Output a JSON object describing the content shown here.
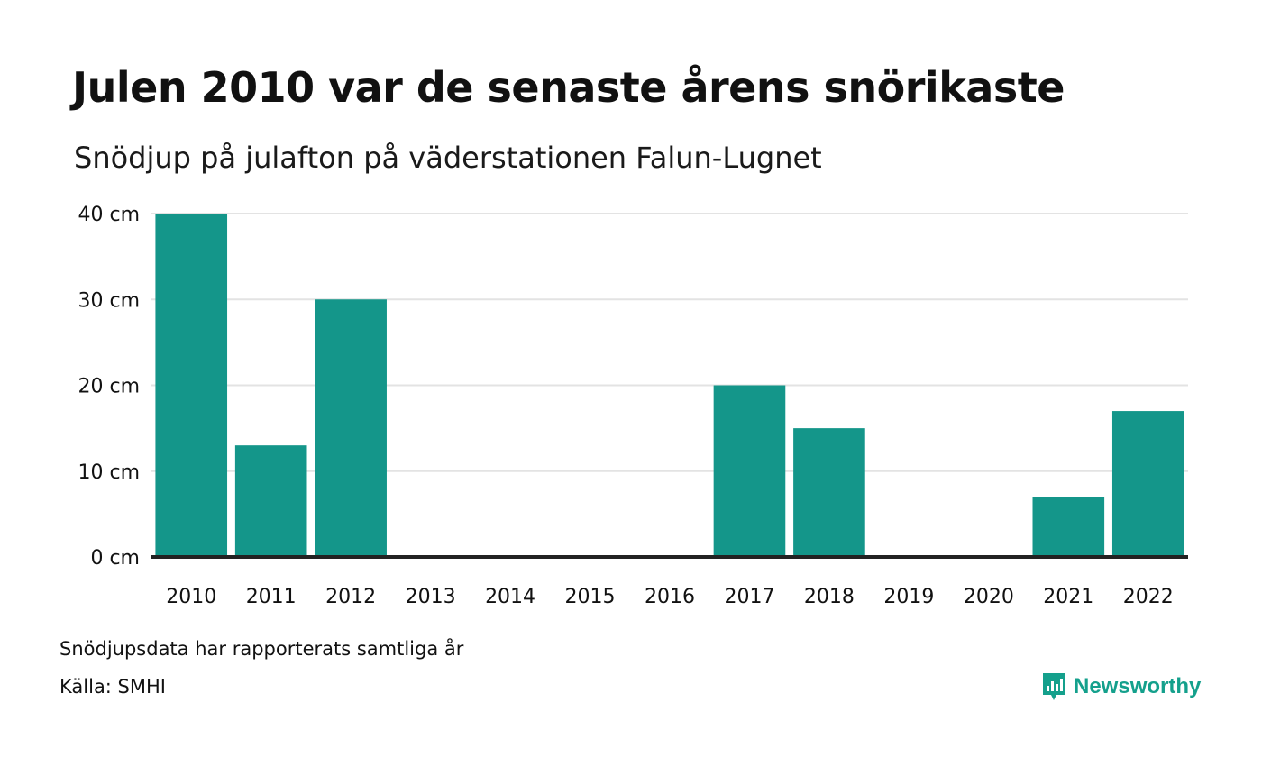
{
  "chart_data": {
    "type": "bar",
    "title": "Julen 2010 var de senaste årens snörikaste",
    "subtitle": "Snödjup på julafton på väderstationen Falun-Lugnet",
    "categories": [
      "2010",
      "2011",
      "2012",
      "2013",
      "2014",
      "2015",
      "2016",
      "2017",
      "2018",
      "2019",
      "2020",
      "2021",
      "2022"
    ],
    "values": [
      40,
      13,
      30,
      0,
      0,
      0,
      0,
      20,
      15,
      0,
      0,
      7,
      17
    ],
    "unit": "cm",
    "ylim": [
      0,
      40
    ],
    "yticks": [
      0,
      10,
      20,
      30,
      40
    ],
    "ytick_labels": [
      "0 cm",
      "10 cm",
      "20 cm",
      "30 cm",
      "40 cm"
    ],
    "grid": true,
    "bar_color": "#14968a"
  },
  "notes": {
    "reported": "Snödjupsdata har rapporterats samtliga år",
    "source": "Källa: SMHI"
  },
  "brand": {
    "name": "Newsworthy",
    "color": "#14a08c",
    "icon": "newsworthy-logo-icon"
  }
}
